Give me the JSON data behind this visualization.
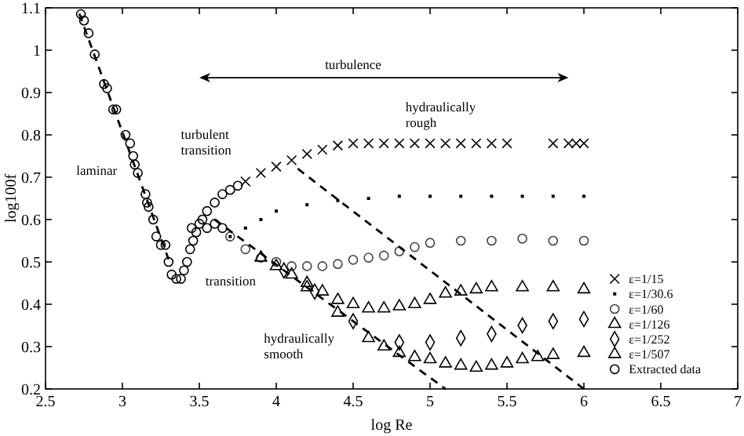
{
  "chart_data": {
    "type": "scatter",
    "xlabel": "log Re",
    "ylabel": "log100f",
    "xlim": [
      2.5,
      7
    ],
    "ylim": [
      0.2,
      1.1
    ],
    "xticks": [
      2.5,
      3,
      3.5,
      4,
      4.5,
      5,
      5.5,
      6,
      6.5,
      7
    ],
    "yticks": [
      0.2,
      0.3,
      0.4,
      0.5,
      0.6,
      0.7,
      0.8,
      0.9,
      1,
      1.1
    ],
    "legend": "bottom right",
    "grid": false,
    "annotations": [
      "turbulence",
      "laminar",
      "turbulent transition",
      "transition",
      "hydraulically rough",
      "hydraulically smooth"
    ],
    "series": [
      {
        "name": "ε=1/15",
        "marker": "cross",
        "color": "#000000",
        "x": [
          3.8,
          3.9,
          4.0,
          4.1,
          4.2,
          4.3,
          4.4,
          4.5,
          4.6,
          4.7,
          4.8,
          4.9,
          5.0,
          5.1,
          5.2,
          5.3,
          5.4,
          5.5,
          5.8,
          5.9,
          5.95,
          6.0
        ],
        "values": [
          0.69,
          0.71,
          0.725,
          0.74,
          0.755,
          0.765,
          0.775,
          0.78,
          0.78,
          0.78,
          0.78,
          0.78,
          0.78,
          0.78,
          0.78,
          0.78,
          0.78,
          0.78,
          0.78,
          0.78,
          0.78,
          0.78
        ]
      },
      {
        "name": "ε=1/30.6",
        "marker": "square",
        "color": "#000000",
        "x": [
          3.7,
          3.8,
          3.9,
          4.0,
          4.2,
          4.4,
          4.6,
          4.8,
          5.0,
          5.2,
          5.4,
          5.6,
          5.8,
          6.0
        ],
        "values": [
          0.56,
          0.58,
          0.6,
          0.62,
          0.635,
          0.645,
          0.65,
          0.655,
          0.655,
          0.655,
          0.655,
          0.655,
          0.655,
          0.655
        ]
      },
      {
        "name": "ε=1/60",
        "marker": "circle",
        "color": "#444444",
        "x": [
          3.7,
          3.8,
          3.9,
          4.0,
          4.1,
          4.2,
          4.3,
          4.4,
          4.5,
          4.6,
          4.7,
          4.8,
          4.9,
          5.0,
          5.2,
          5.4,
          5.6,
          5.8,
          6.0
        ],
        "values": [
          0.56,
          0.53,
          0.51,
          0.5,
          0.49,
          0.49,
          0.49,
          0.495,
          0.505,
          0.51,
          0.515,
          0.525,
          0.535,
          0.545,
          0.55,
          0.55,
          0.555,
          0.55,
          0.55
        ]
      },
      {
        "name": "ε=1/126",
        "marker": "triangle",
        "color": "#000000",
        "x": [
          3.9,
          4.0,
          4.1,
          4.2,
          4.3,
          4.4,
          4.5,
          4.6,
          4.7,
          4.8,
          4.9,
          5.0,
          5.1,
          5.2,
          5.3,
          5.4,
          5.6,
          5.8,
          6.0
        ],
        "values": [
          0.51,
          0.49,
          0.47,
          0.45,
          0.43,
          0.41,
          0.4,
          0.39,
          0.39,
          0.395,
          0.4,
          0.41,
          0.425,
          0.43,
          0.435,
          0.44,
          0.44,
          0.44,
          0.435
        ]
      },
      {
        "name": "ε=1/252",
        "marker": "diamond",
        "color": "#000000",
        "x": [
          4.05,
          4.25,
          4.5,
          4.8,
          5.0,
          5.2,
          5.4,
          5.6,
          5.8,
          6.0
        ],
        "values": [
          0.48,
          0.43,
          0.36,
          0.31,
          0.31,
          0.32,
          0.33,
          0.35,
          0.36,
          0.365
        ]
      },
      {
        "name": "ε=1/507",
        "marker": "triangle",
        "color": "#000000",
        "x": [
          4.2,
          4.4,
          4.6,
          4.7,
          4.8,
          4.9,
          5.0,
          5.1,
          5.2,
          5.3,
          5.4,
          5.5,
          5.6,
          5.7,
          5.8,
          6.0
        ],
        "values": [
          0.44,
          0.38,
          0.32,
          0.3,
          0.285,
          0.275,
          0.27,
          0.26,
          0.255,
          0.25,
          0.255,
          0.26,
          0.27,
          0.275,
          0.28,
          0.285
        ]
      },
      {
        "name": "Extracted data",
        "marker": "circle",
        "color": "#000000",
        "x": [
          2.73,
          2.75,
          2.78,
          2.82,
          2.88,
          2.9,
          2.94,
          2.96,
          3.02,
          3.05,
          3.07,
          3.08,
          3.1,
          3.15,
          3.16,
          3.17,
          3.2,
          3.22,
          3.25,
          3.28,
          3.3,
          3.32,
          3.35,
          3.38,
          3.4,
          3.42,
          3.44,
          3.46,
          3.48,
          3.5,
          3.52,
          3.55,
          3.6,
          3.65,
          3.7,
          3.75,
          3.45,
          3.55,
          3.6,
          3.65
        ],
        "values": [
          1.085,
          1.07,
          1.04,
          0.99,
          0.92,
          0.91,
          0.86,
          0.86,
          0.8,
          0.78,
          0.75,
          0.73,
          0.71,
          0.66,
          0.64,
          0.63,
          0.6,
          0.56,
          0.54,
          0.54,
          0.5,
          0.47,
          0.46,
          0.46,
          0.48,
          0.5,
          0.53,
          0.55,
          0.57,
          0.59,
          0.6,
          0.62,
          0.64,
          0.66,
          0.67,
          0.68,
          0.58,
          0.58,
          0.59,
          0.58
        ]
      },
      {
        "type": "line",
        "marker": "none",
        "line_style": "dashed",
        "color": "#000000",
        "x": [
          2.72,
          3.3
        ],
        "values": [
          1.086,
          0.506
        ]
      },
      {
        "type": "line",
        "marker": "none",
        "line_style": "dashed",
        "color": "#000000",
        "x": [
          3.6,
          5.1
        ],
        "values": [
          0.6,
          0.2
        ]
      },
      {
        "type": "line",
        "marker": "none",
        "line_style": "dashed",
        "color": "#000000",
        "x": [
          4.14,
          6.0
        ],
        "values": [
          0.72,
          0.2
        ]
      }
    ]
  }
}
